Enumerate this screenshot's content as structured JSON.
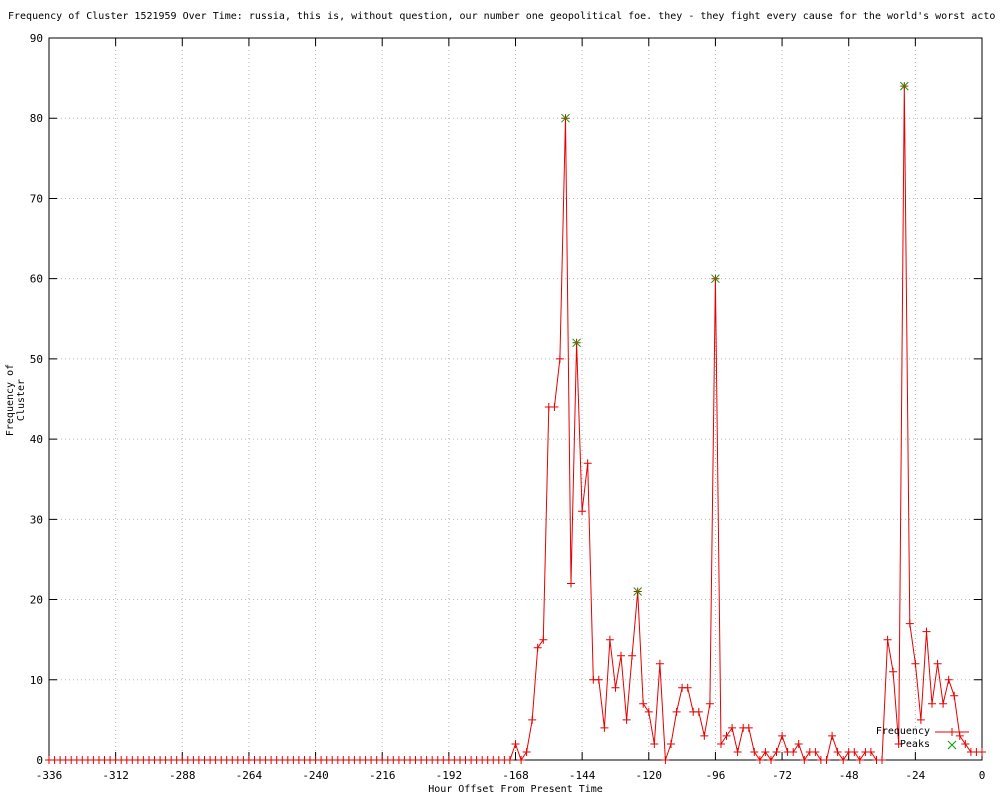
{
  "chart_data": {
    "type": "line",
    "title": "Frequency of Cluster 1521959 Over Time: russia, this is, without question, our number one geopolitical foe. they - they fight every cause for the world's worst acto",
    "xlabel": "Hour Offset From Present Time",
    "ylabel": "Frequency of Cluster",
    "xlim": [
      -336,
      0
    ],
    "ylim": [
      0,
      90
    ],
    "x_ticks": [
      -336,
      -312,
      -288,
      -264,
      -240,
      -216,
      -192,
      -168,
      -144,
      -120,
      -96,
      -72,
      -48,
      -24,
      0
    ],
    "y_ticks": [
      0,
      10,
      20,
      30,
      40,
      50,
      60,
      70,
      80,
      90
    ],
    "grid": true,
    "legend_position": "bottom-right",
    "colors": {
      "line": "#e60000",
      "peaks": "#00a000",
      "grid": "#b8b8b8",
      "border": "#000000"
    },
    "series": [
      {
        "name": "Frequency",
        "style": "line-with-plus-markers",
        "color": "#e60000",
        "x_start": -336,
        "x_step": 2,
        "values": [
          0,
          0,
          0,
          0,
          0,
          0,
          0,
          0,
          0,
          0,
          0,
          0,
          0,
          0,
          0,
          0,
          0,
          0,
          0,
          0,
          0,
          0,
          0,
          0,
          0,
          0,
          0,
          0,
          0,
          0,
          0,
          0,
          0,
          0,
          0,
          0,
          0,
          0,
          0,
          0,
          0,
          0,
          0,
          0,
          0,
          0,
          0,
          0,
          0,
          0,
          0,
          0,
          0,
          0,
          0,
          0,
          0,
          0,
          0,
          0,
          0,
          0,
          0,
          0,
          0,
          0,
          0,
          0,
          0,
          0,
          0,
          0,
          0,
          0,
          0,
          0,
          0,
          0,
          0,
          0,
          0,
          0,
          0,
          0,
          2,
          0,
          1,
          5,
          14,
          15,
          44,
          44,
          50,
          80,
          22,
          52,
          31,
          37,
          10,
          10,
          4,
          15,
          9,
          13,
          5,
          13,
          21,
          7,
          6,
          2,
          12,
          0,
          2,
          6,
          9,
          9,
          6,
          6,
          3,
          7,
          60,
          2,
          3,
          4,
          1,
          4,
          4,
          1,
          0,
          1,
          0,
          1,
          3,
          1,
          1,
          2,
          0,
          1,
          1,
          0,
          0,
          3,
          1,
          0,
          1,
          1,
          0,
          1,
          1,
          0,
          0,
          15,
          11,
          2,
          84,
          17,
          12,
          5,
          16,
          7,
          12,
          7,
          10,
          8,
          3,
          2,
          1,
          1,
          1
        ]
      },
      {
        "name": "Peaks",
        "style": "cross-markers",
        "color": "#00a000",
        "points": [
          [
            -150,
            80
          ],
          [
            -146,
            52
          ],
          [
            -124,
            21
          ],
          [
            -96,
            60
          ],
          [
            -28,
            84
          ]
        ]
      }
    ]
  }
}
